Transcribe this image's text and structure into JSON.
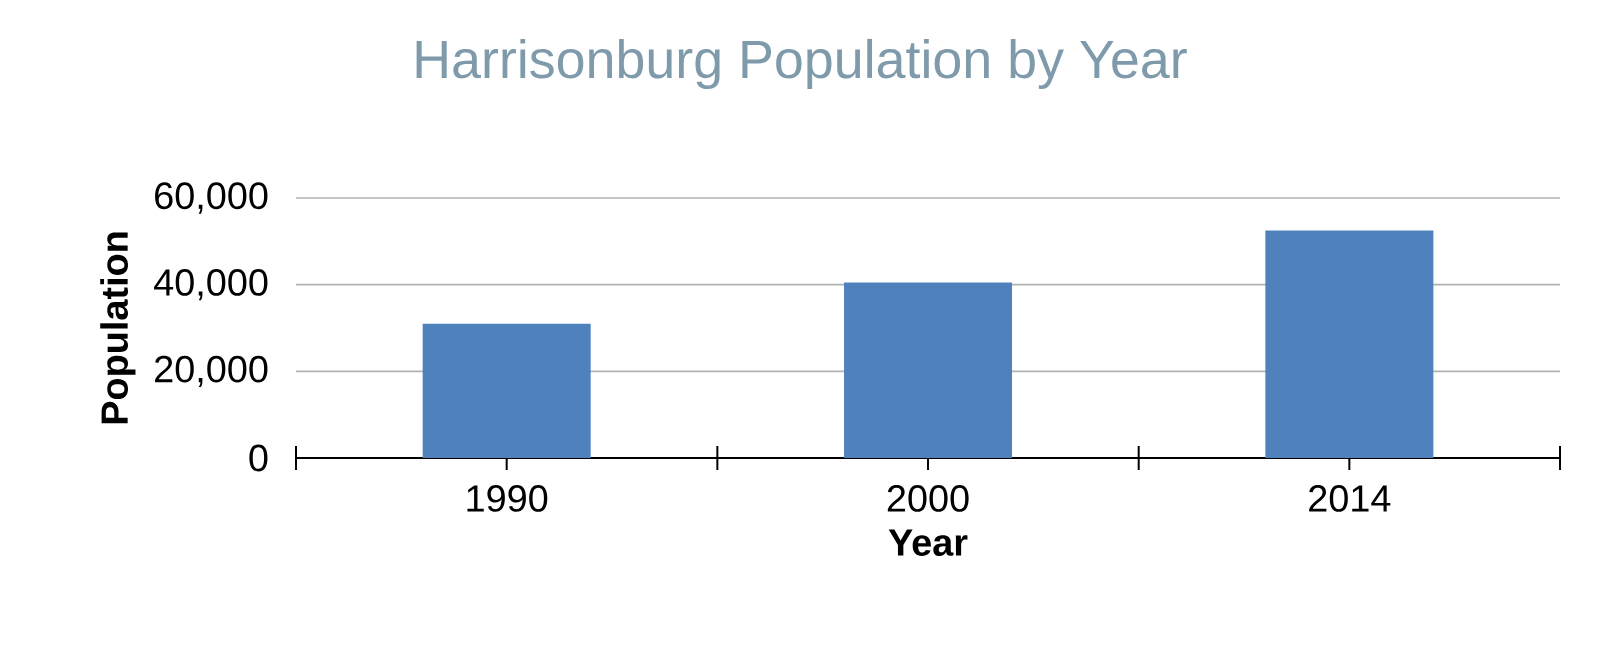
{
  "chart_data": {
    "type": "bar",
    "title": "Harrisonburg Population by Year",
    "xlabel": "Year",
    "ylabel": "Population",
    "categories": [
      "1990",
      "2000",
      "2014"
    ],
    "values": [
      31000,
      40500,
      52500
    ],
    "color": "#4f81bd",
    "ylim": [
      0,
      60000
    ],
    "yticks": [
      {
        "value": 0,
        "label": "0"
      },
      {
        "value": 20000,
        "label": "20,000"
      },
      {
        "value": 40000,
        "label": "40,000"
      },
      {
        "value": 60000,
        "label": "60,000"
      }
    ],
    "grid": "y"
  }
}
